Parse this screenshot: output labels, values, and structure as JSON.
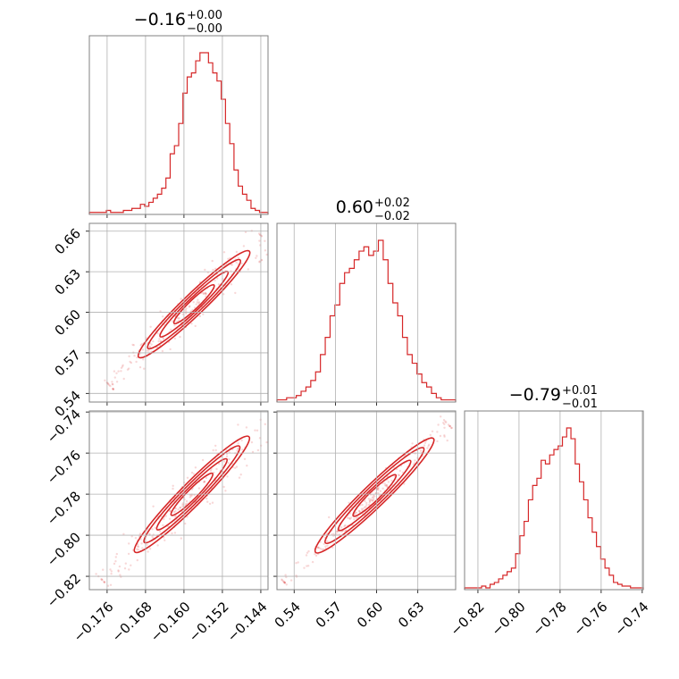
{
  "figure": {
    "type": "corner-plot",
    "color": "#d62728"
  },
  "chart_data": {
    "type": "corner",
    "parameters": [
      {
        "id": "p0",
        "title": {
          "value": "−0.16",
          "plus": "+0.00",
          "minus": "−0.00"
        },
        "range": [
          -0.1797,
          -0.1425
        ],
        "ticks": [
          -0.176,
          -0.168,
          -0.16,
          -0.152,
          -0.144
        ],
        "tick_labels": [
          "−0.176",
          "−0.168",
          "−0.160",
          "−0.152",
          "−0.144"
        ],
        "hist": {
          "edges_start": -0.1797,
          "edges_end": -0.1425,
          "counts": [
            1,
            1,
            1,
            1,
            2,
            1,
            1,
            1,
            2,
            2,
            3,
            3,
            5,
            4,
            6,
            8,
            10,
            13,
            18,
            30,
            34,
            45,
            60,
            68,
            70,
            76,
            80,
            80,
            75,
            70,
            66,
            57,
            45,
            35,
            22,
            14,
            10,
            7,
            3,
            2,
            1,
            1
          ]
        }
      },
      {
        "id": "p1",
        "title": {
          "value": "0.60",
          "plus": "+0.02",
          "minus": "−0.02"
        },
        "range": [
          0.5275,
          0.6575
        ],
        "ticks": [
          0.54,
          0.57,
          0.6,
          0.63,
          0.66
        ],
        "tick_labels": [
          "0.54",
          "0.57",
          "0.60",
          "0.63",
          "0.66"
        ],
        "hist": {
          "edges_start": 0.5275,
          "edges_end": 0.6575,
          "counts": [
            1,
            1,
            2,
            2,
            3,
            5,
            7,
            10,
            14,
            22,
            30,
            40,
            45,
            55,
            60,
            62,
            66,
            70,
            72,
            68,
            70,
            75,
            66,
            55,
            46,
            40,
            30,
            22,
            18,
            13,
            9,
            7,
            4,
            2,
            1,
            1,
            1
          ]
        }
      },
      {
        "id": "p2",
        "title": {
          "value": "−0.79",
          "plus": "+0.01",
          "minus": "−0.01"
        },
        "range": [
          -0.8265,
          -0.7395
        ],
        "ticks": [
          -0.82,
          -0.8,
          -0.78,
          -0.76,
          -0.74
        ],
        "tick_labels": [
          "−0.82",
          "−0.80",
          "−0.78",
          "−0.76",
          "−0.74"
        ],
        "hist": {
          "edges_start": -0.8265,
          "edges_end": -0.7395,
          "counts": [
            1,
            1,
            1,
            1,
            2,
            1,
            3,
            4,
            6,
            8,
            10,
            12,
            20,
            30,
            38,
            50,
            58,
            62,
            72,
            70,
            75,
            78,
            80,
            85,
            90,
            84,
            70,
            60,
            50,
            40,
            32,
            24,
            17,
            12,
            8,
            4,
            3,
            2,
            2,
            1,
            1,
            1
          ]
        }
      }
    ],
    "pairs": [
      {
        "x": "p0",
        "y": "p1",
        "axis": [
          -0.1797,
          -0.1425,
          0.5336,
          0.6658
        ]
      },
      {
        "x": "p0",
        "y": "p2",
        "axis": [
          -0.1797,
          -0.1425,
          -0.8265,
          -0.7395
        ]
      },
      {
        "x": "p1",
        "y": "p2",
        "axis": [
          0.5275,
          0.6575,
          -0.8265,
          -0.7395
        ]
      }
    ],
    "y_ticks": {
      "p1": {
        "values": [
          0.54,
          0.57,
          0.6,
          0.63,
          0.66
        ],
        "labels": [
          "0.54",
          "0.57",
          "0.60",
          "0.63",
          "0.66"
        ]
      },
      "p2": {
        "values": [
          -0.82,
          -0.8,
          -0.78,
          -0.76,
          -0.74
        ],
        "labels": [
          "−0.82",
          "−0.80",
          "−0.78",
          "−0.76",
          "−0.74"
        ]
      }
    },
    "grid": true
  }
}
